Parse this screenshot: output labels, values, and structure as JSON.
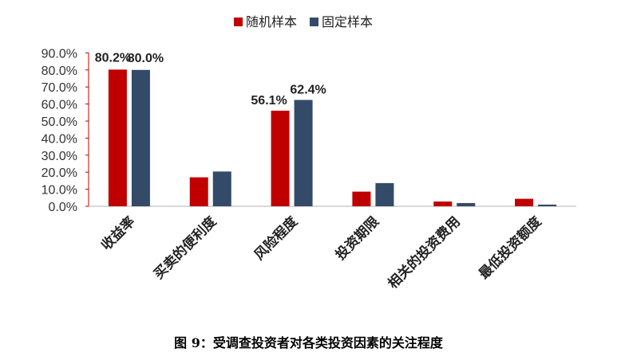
{
  "chart_data": {
    "type": "bar",
    "title": "",
    "categories": [
      "收益率",
      "买卖的便利度",
      "风险程度",
      "投资期限",
      "相关的投资费用",
      "最低投资额度"
    ],
    "series": [
      {
        "name": "随机样本",
        "color": "#C00000",
        "values": [
          80.2,
          17.0,
          56.1,
          8.6,
          2.8,
          4.4
        ]
      },
      {
        "name": "固定样本",
        "color": "#344A69",
        "values": [
          80.0,
          20.4,
          62.4,
          13.6,
          1.9,
          1.0
        ]
      }
    ],
    "data_labels": [
      {
        "series": 0,
        "index": 0,
        "text": "80.2%"
      },
      {
        "series": 1,
        "index": 0,
        "text": "80.0%"
      },
      {
        "series": 0,
        "index": 2,
        "text": "56.1%"
      },
      {
        "series": 1,
        "index": 2,
        "text": "62.4%"
      }
    ],
    "yticks": [
      "0.0%",
      "10.0%",
      "20.0%",
      "30.0%",
      "40.0%",
      "50.0%",
      "60.0%",
      "70.0%",
      "80.0%",
      "90.0%"
    ],
    "ylim": [
      0,
      90
    ],
    "legend": "top-center",
    "grid": false
  },
  "caption": "图 9：受调查投资者对各类投资因素的关注程度"
}
